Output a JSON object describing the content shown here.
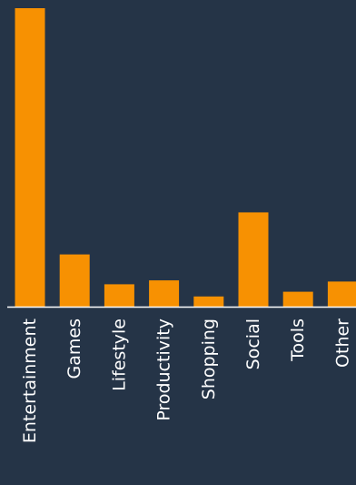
{
  "colors": {
    "background": "#253447",
    "bar": "#f79102",
    "axis": "#ffffff",
    "label": "#ffffff"
  },
  "chart_data": {
    "type": "bar",
    "title": "",
    "xlabel": "",
    "ylabel": "",
    "categories": [
      "Entertainment",
      "Games",
      "Lifestyle",
      "Productivity",
      "Shopping",
      "Social",
      "Tools",
      "Other"
    ],
    "values": [
      100,
      17.5,
      7.5,
      8.8,
      3.4,
      31.6,
      5.0,
      8.4
    ],
    "ylim": [
      0,
      100
    ],
    "grid": false,
    "legend": "none"
  }
}
